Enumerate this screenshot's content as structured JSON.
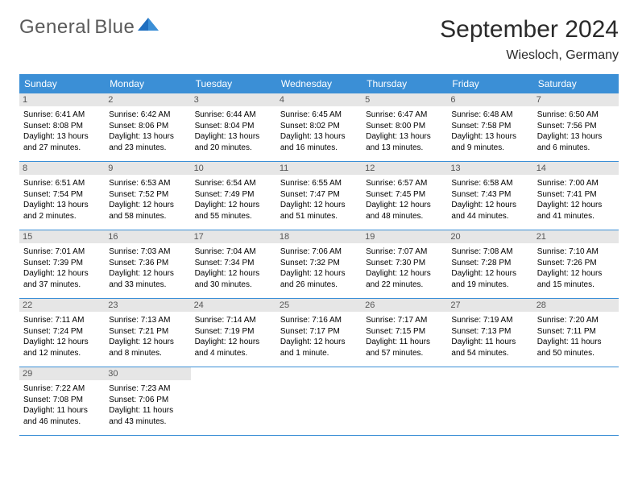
{
  "logo": {
    "word1": "General",
    "word2": "Blue"
  },
  "title": "September 2024",
  "location": "Wiesloch, Germany",
  "colors": {
    "header_blue": "#3b8fd6",
    "logo_gray": "#5a5a5a",
    "logo_blue": "#2a7fd4",
    "daynum_bg": "#e6e6e6",
    "daynum_fg": "#555555",
    "border": "#3b8fd6"
  },
  "weekdays": [
    "Sunday",
    "Monday",
    "Tuesday",
    "Wednesday",
    "Thursday",
    "Friday",
    "Saturday"
  ],
  "weeks": [
    [
      {
        "n": "1",
        "sr": "6:41 AM",
        "ss": "8:08 PM",
        "dl": "13 hours and 27 minutes."
      },
      {
        "n": "2",
        "sr": "6:42 AM",
        "ss": "8:06 PM",
        "dl": "13 hours and 23 minutes."
      },
      {
        "n": "3",
        "sr": "6:44 AM",
        "ss": "8:04 PM",
        "dl": "13 hours and 20 minutes."
      },
      {
        "n": "4",
        "sr": "6:45 AM",
        "ss": "8:02 PM",
        "dl": "13 hours and 16 minutes."
      },
      {
        "n": "5",
        "sr": "6:47 AM",
        "ss": "8:00 PM",
        "dl": "13 hours and 13 minutes."
      },
      {
        "n": "6",
        "sr": "6:48 AM",
        "ss": "7:58 PM",
        "dl": "13 hours and 9 minutes."
      },
      {
        "n": "7",
        "sr": "6:50 AM",
        "ss": "7:56 PM",
        "dl": "13 hours and 6 minutes."
      }
    ],
    [
      {
        "n": "8",
        "sr": "6:51 AM",
        "ss": "7:54 PM",
        "dl": "13 hours and 2 minutes."
      },
      {
        "n": "9",
        "sr": "6:53 AM",
        "ss": "7:52 PM",
        "dl": "12 hours and 58 minutes."
      },
      {
        "n": "10",
        "sr": "6:54 AM",
        "ss": "7:49 PM",
        "dl": "12 hours and 55 minutes."
      },
      {
        "n": "11",
        "sr": "6:55 AM",
        "ss": "7:47 PM",
        "dl": "12 hours and 51 minutes."
      },
      {
        "n": "12",
        "sr": "6:57 AM",
        "ss": "7:45 PM",
        "dl": "12 hours and 48 minutes."
      },
      {
        "n": "13",
        "sr": "6:58 AM",
        "ss": "7:43 PM",
        "dl": "12 hours and 44 minutes."
      },
      {
        "n": "14",
        "sr": "7:00 AM",
        "ss": "7:41 PM",
        "dl": "12 hours and 41 minutes."
      }
    ],
    [
      {
        "n": "15",
        "sr": "7:01 AM",
        "ss": "7:39 PM",
        "dl": "12 hours and 37 minutes."
      },
      {
        "n": "16",
        "sr": "7:03 AM",
        "ss": "7:36 PM",
        "dl": "12 hours and 33 minutes."
      },
      {
        "n": "17",
        "sr": "7:04 AM",
        "ss": "7:34 PM",
        "dl": "12 hours and 30 minutes."
      },
      {
        "n": "18",
        "sr": "7:06 AM",
        "ss": "7:32 PM",
        "dl": "12 hours and 26 minutes."
      },
      {
        "n": "19",
        "sr": "7:07 AM",
        "ss": "7:30 PM",
        "dl": "12 hours and 22 minutes."
      },
      {
        "n": "20",
        "sr": "7:08 AM",
        "ss": "7:28 PM",
        "dl": "12 hours and 19 minutes."
      },
      {
        "n": "21",
        "sr": "7:10 AM",
        "ss": "7:26 PM",
        "dl": "12 hours and 15 minutes."
      }
    ],
    [
      {
        "n": "22",
        "sr": "7:11 AM",
        "ss": "7:24 PM",
        "dl": "12 hours and 12 minutes."
      },
      {
        "n": "23",
        "sr": "7:13 AM",
        "ss": "7:21 PM",
        "dl": "12 hours and 8 minutes."
      },
      {
        "n": "24",
        "sr": "7:14 AM",
        "ss": "7:19 PM",
        "dl": "12 hours and 4 minutes."
      },
      {
        "n": "25",
        "sr": "7:16 AM",
        "ss": "7:17 PM",
        "dl": "12 hours and 1 minute."
      },
      {
        "n": "26",
        "sr": "7:17 AM",
        "ss": "7:15 PM",
        "dl": "11 hours and 57 minutes."
      },
      {
        "n": "27",
        "sr": "7:19 AM",
        "ss": "7:13 PM",
        "dl": "11 hours and 54 minutes."
      },
      {
        "n": "28",
        "sr": "7:20 AM",
        "ss": "7:11 PM",
        "dl": "11 hours and 50 minutes."
      }
    ],
    [
      {
        "n": "29",
        "sr": "7:22 AM",
        "ss": "7:08 PM",
        "dl": "11 hours and 46 minutes."
      },
      {
        "n": "30",
        "sr": "7:23 AM",
        "ss": "7:06 PM",
        "dl": "11 hours and 43 minutes."
      },
      null,
      null,
      null,
      null,
      null
    ]
  ],
  "labels": {
    "sunrise": "Sunrise:",
    "sunset": "Sunset:",
    "daylight": "Daylight:"
  }
}
